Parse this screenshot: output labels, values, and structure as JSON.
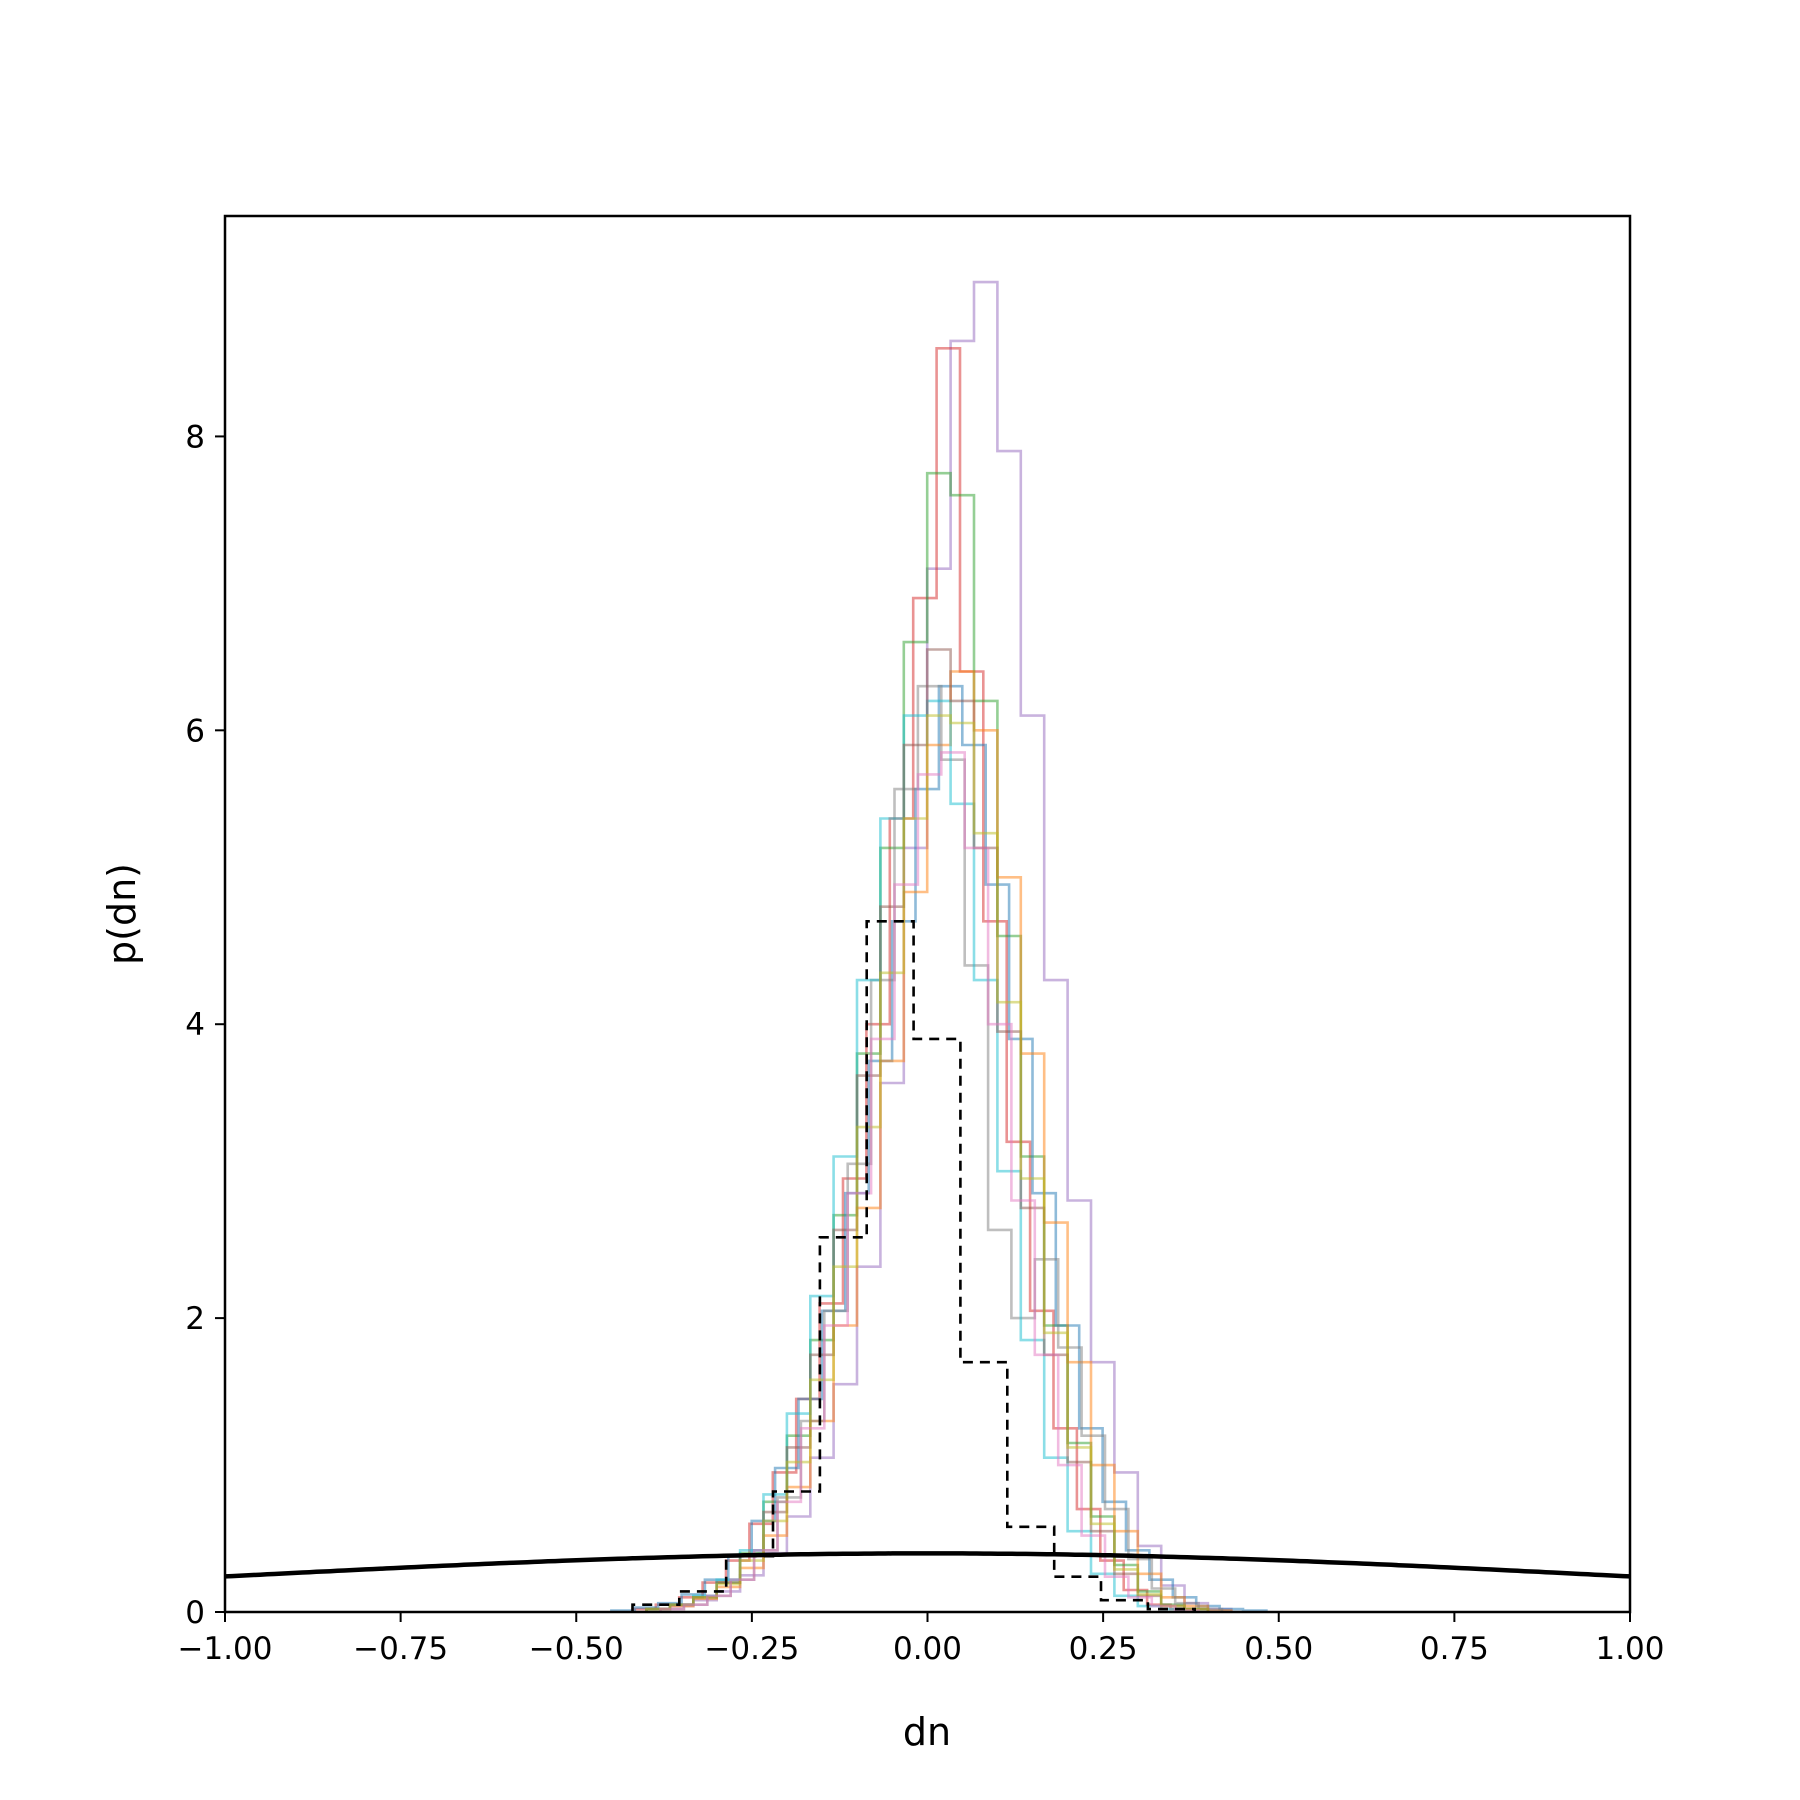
{
  "chart_data": {
    "type": "histogram",
    "title": "",
    "xlabel": "dn",
    "ylabel": "p(dn)",
    "xlim": [
      -1.0,
      1.0
    ],
    "ylim": [
      0,
      9.5
    ],
    "x_ticks": [
      -1.0,
      -0.75,
      -0.5,
      -0.25,
      0.0,
      0.25,
      0.5,
      0.75,
      1.0
    ],
    "x_tick_labels": [
      "−1.00",
      "−0.75",
      "−0.50",
      "−0.25",
      "0.00",
      "0.25",
      "0.50",
      "0.75",
      "1.00"
    ],
    "y_ticks": [
      0,
      2,
      4,
      6,
      8
    ],
    "y_tick_labels": [
      "0",
      "2",
      "4",
      "6",
      "8"
    ],
    "grid": false,
    "legend": "none",
    "series": [
      {
        "color": "#9467bd",
        "x0": -0.4,
        "width": 0.0333,
        "values": [
          0.02,
          0.04,
          0.08,
          0.14,
          0.25,
          0.4,
          0.65,
          1.05,
          1.55,
          2.35,
          3.6,
          5.2,
          7.1,
          8.65,
          9.05,
          7.9,
          6.1,
          4.3,
          2.8,
          1.7,
          0.95,
          0.45,
          0.18,
          0.06,
          0.02
        ]
      },
      {
        "color": "#d62728",
        "x0": -0.42,
        "width": 0.0333,
        "values": [
          0.02,
          0.05,
          0.1,
          0.2,
          0.35,
          0.6,
          0.95,
          1.45,
          2.1,
          2.95,
          4.0,
          5.4,
          6.9,
          8.6,
          6.4,
          4.7,
          3.2,
          2.05,
          1.25,
          0.7,
          0.35,
          0.15,
          0.05,
          0.02
        ]
      },
      {
        "color": "#2ca02c",
        "x0": -0.4,
        "width": 0.0333,
        "values": [
          0.02,
          0.05,
          0.1,
          0.2,
          0.4,
          0.75,
          1.2,
          1.85,
          2.7,
          3.8,
          5.2,
          6.6,
          7.75,
          7.6,
          6.2,
          4.6,
          3.1,
          1.95,
          1.15,
          0.65,
          0.32,
          0.14,
          0.05,
          0.02
        ]
      },
      {
        "color": "#1f77b4",
        "x0": -0.45,
        "width": 0.0333,
        "values": [
          0.01,
          0.03,
          0.06,
          0.12,
          0.22,
          0.38,
          0.62,
          0.98,
          1.45,
          2.05,
          2.85,
          3.75,
          4.7,
          5.6,
          6.3,
          5.9,
          4.95,
          3.9,
          2.85,
          1.95,
          1.25,
          0.75,
          0.42,
          0.22,
          0.1,
          0.04,
          0.02,
          0.01
        ]
      },
      {
        "color": "#ff7f0e",
        "x0": -0.4,
        "width": 0.0333,
        "values": [
          0.02,
          0.04,
          0.09,
          0.17,
          0.3,
          0.52,
          0.85,
          1.3,
          1.95,
          2.75,
          3.75,
          4.9,
          5.9,
          6.4,
          6.0,
          5.0,
          3.8,
          2.65,
          1.7,
          1.0,
          0.55,
          0.26,
          0.1,
          0.04,
          0.01
        ]
      },
      {
        "color": "#7f7f7f",
        "x0": -0.38,
        "width": 0.0333,
        "values": [
          0.02,
          0.05,
          0.11,
          0.22,
          0.42,
          0.78,
          1.3,
          2.05,
          3.05,
          4.3,
          5.6,
          6.3,
          5.8,
          4.4,
          2.6,
          2.0,
          2.4,
          1.8,
          1.2,
          0.7,
          0.36,
          0.16,
          0.06,
          0.02
        ]
      },
      {
        "color": "#17becf",
        "x0": -0.4,
        "width": 0.0333,
        "values": [
          0.02,
          0.05,
          0.11,
          0.22,
          0.42,
          0.8,
          1.35,
          2.15,
          3.1,
          4.3,
          5.4,
          6.1,
          6.2,
          5.5,
          4.3,
          3.0,
          1.85,
          1.05,
          0.55,
          0.26,
          0.11,
          0.04,
          0.02
        ]
      },
      {
        "color": "#8c564b",
        "x0": -0.4,
        "width": 0.0333,
        "values": [
          0.02,
          0.05,
          0.1,
          0.2,
          0.38,
          0.68,
          1.12,
          1.75,
          2.6,
          3.65,
          4.8,
          5.9,
          6.55,
          6.2,
          5.2,
          3.95,
          2.75,
          1.75,
          1.02,
          0.55,
          0.26,
          0.11,
          0.04,
          0.02
        ]
      },
      {
        "color": "#bcbd22",
        "x0": -0.4,
        "width": 0.0333,
        "values": [
          0.02,
          0.05,
          0.1,
          0.19,
          0.35,
          0.62,
          1.02,
          1.58,
          2.35,
          3.3,
          4.35,
          5.4,
          6.1,
          6.05,
          5.3,
          4.15,
          2.95,
          1.9,
          1.12,
          0.6,
          0.29,
          0.12,
          0.04,
          0.02
        ]
      },
      {
        "color": "#e377c2",
        "x0": -0.38,
        "width": 0.0333,
        "values": [
          0.02,
          0.05,
          0.11,
          0.22,
          0.42,
          0.75,
          1.25,
          1.95,
          2.85,
          3.9,
          4.95,
          5.7,
          5.85,
          5.2,
          4.0,
          2.8,
          1.75,
          1.0,
          0.52,
          0.24,
          0.1,
          0.04,
          0.01
        ]
      },
      {
        "color": "#000000",
        "dashed": true,
        "alpha": 1.0,
        "x0": -0.42,
        "width": 0.0667,
        "values": [
          0.05,
          0.14,
          0.38,
          0.82,
          2.55,
          4.7,
          3.9,
          1.7,
          0.58,
          0.24,
          0.08,
          0.02
        ]
      }
    ],
    "curve": {
      "type": "normal-pdf",
      "mean": 0.0,
      "std": 1.0,
      "color": "#000000"
    }
  }
}
